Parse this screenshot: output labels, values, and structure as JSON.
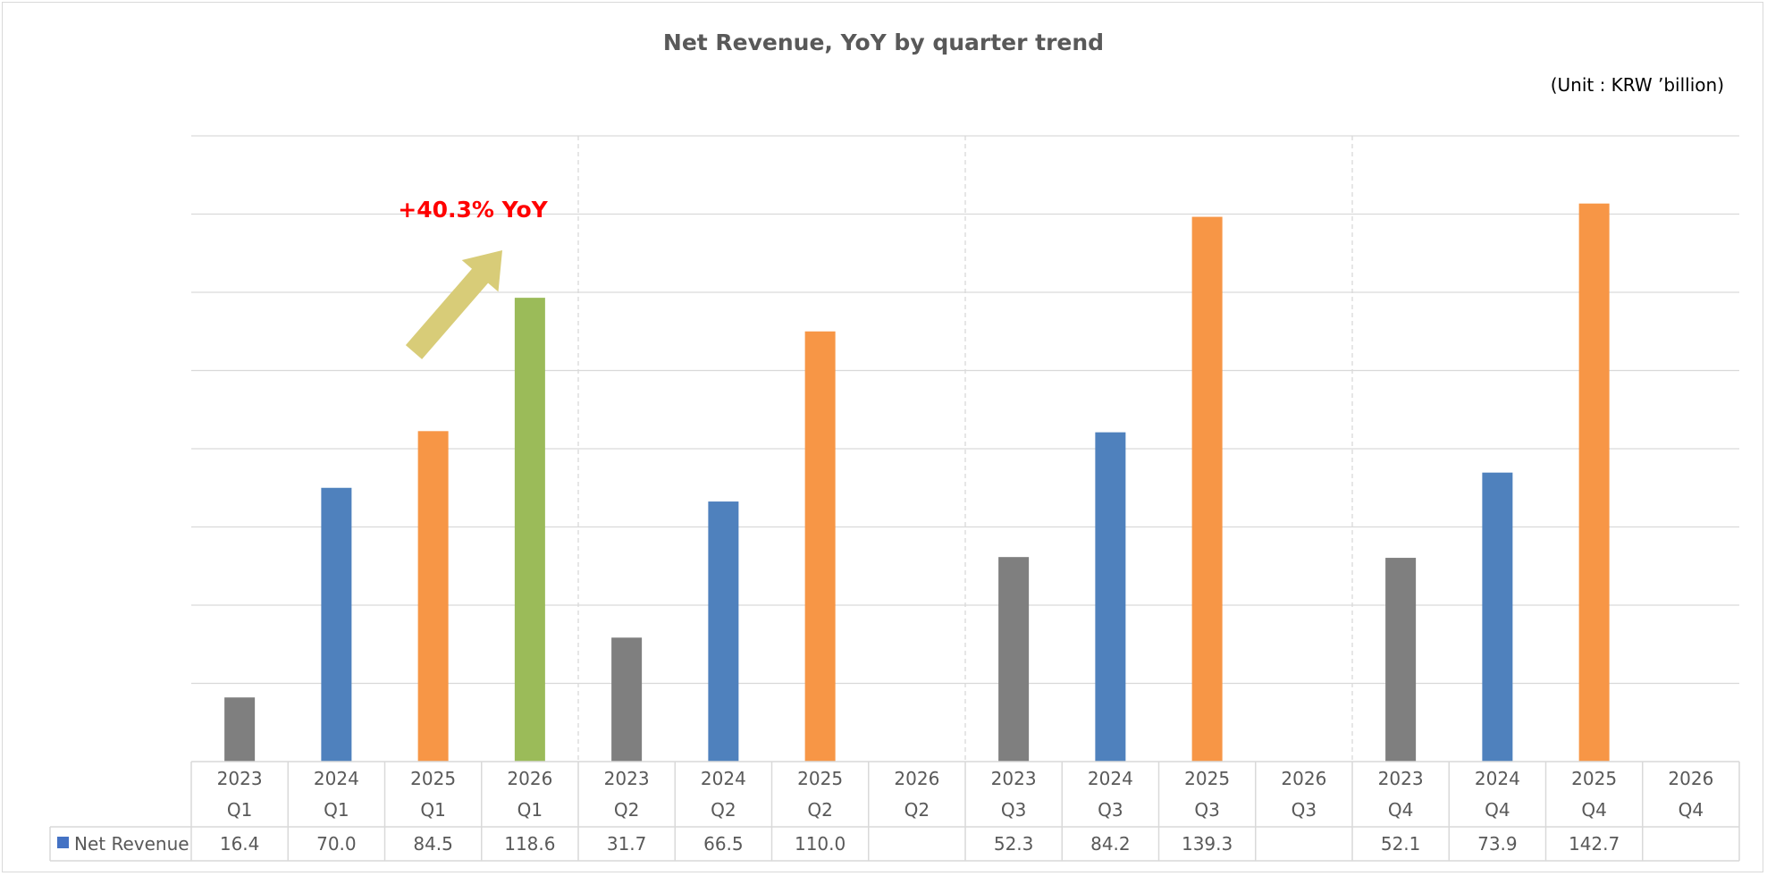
{
  "chart_data": {
    "type": "bar",
    "title": "Net Revenue, YoY by quarter trend",
    "unit_label": "(Unit : KRW ’billion)",
    "categories": [
      {
        "year": "2023",
        "quarter": "Q1"
      },
      {
        "year": "2024",
        "quarter": "Q1"
      },
      {
        "year": "2025",
        "quarter": "Q1"
      },
      {
        "year": "2026",
        "quarter": "Q1"
      },
      {
        "year": "2023",
        "quarter": "Q2"
      },
      {
        "year": "2024",
        "quarter": "Q2"
      },
      {
        "year": "2025",
        "quarter": "Q2"
      },
      {
        "year": "2026",
        "quarter": "Q2"
      },
      {
        "year": "2023",
        "quarter": "Q3"
      },
      {
        "year": "2024",
        "quarter": "Q3"
      },
      {
        "year": "2025",
        "quarter": "Q3"
      },
      {
        "year": "2026",
        "quarter": "Q3"
      },
      {
        "year": "2023",
        "quarter": "Q4"
      },
      {
        "year": "2024",
        "quarter": "Q4"
      },
      {
        "year": "2025",
        "quarter": "Q4"
      },
      {
        "year": "2026",
        "quarter": "Q4"
      }
    ],
    "series": [
      {
        "name": "Net Revenue",
        "legend_color": "#4472c4",
        "values": [
          16.4,
          70.0,
          84.5,
          118.6,
          31.7,
          66.5,
          110.0,
          null,
          52.3,
          84.2,
          139.3,
          null,
          52.1,
          73.9,
          142.7,
          null
        ],
        "labels": [
          "16.4",
          "70.0",
          "84.5",
          "118.6",
          "31.7",
          "66.5",
          "110.0",
          "",
          "52.3",
          "84.2",
          "139.3",
          "",
          "52.1",
          "73.9",
          "142.7",
          ""
        ]
      }
    ],
    "year_colors": {
      "2023": "#7f7f7f",
      "2024": "#4f81bd",
      "2025": "#f79646",
      "2026": "#9bbb59"
    },
    "ylim": [
      0,
      160
    ],
    "y_gridline_step": 20,
    "grid": true,
    "quarter_separators": "dashed",
    "data_table": true,
    "annotation": {
      "text": "+40.3% YoY",
      "color": "#ff0000",
      "arrow_color": "#d8cc78",
      "points_to": "2026 Q1"
    }
  }
}
